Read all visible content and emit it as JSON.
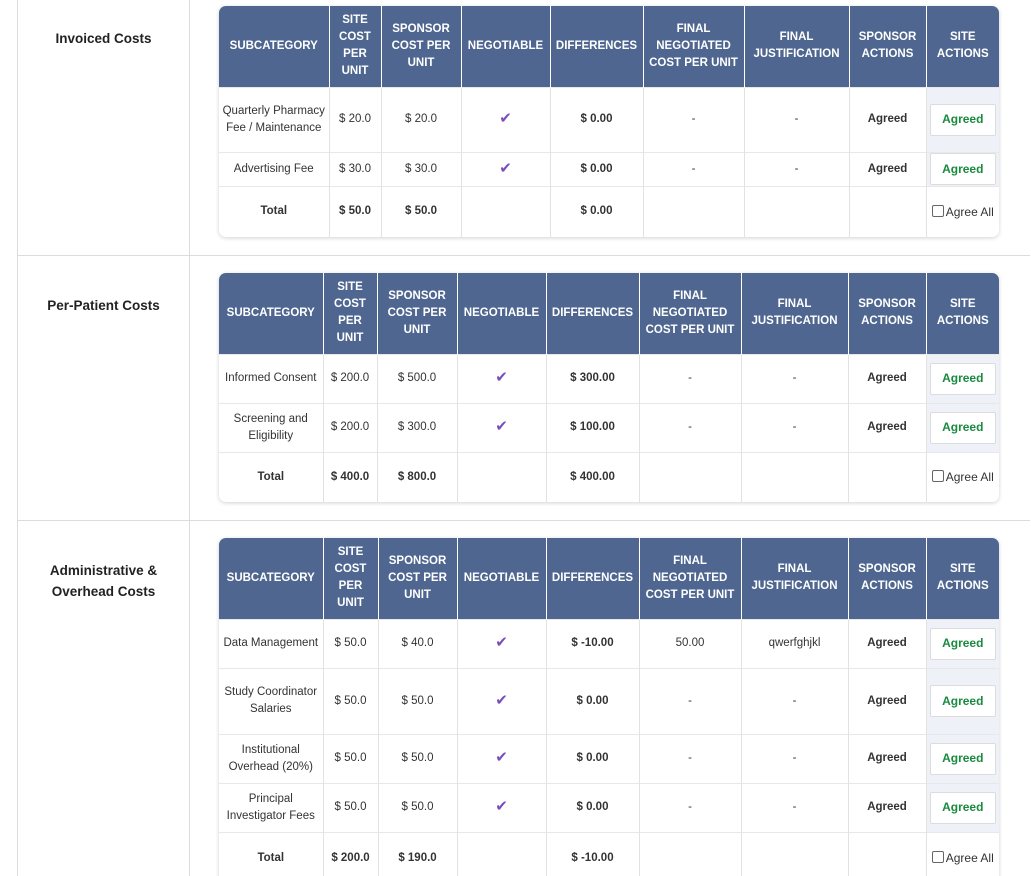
{
  "headers": [
    "Subcategory",
    "Site Cost Per Unit",
    "Sponsor Cost Per Unit",
    "Negotiable",
    "Differences",
    "Final Negotiated Cost Per Unit",
    "Final Justification",
    "Sponsor Actions",
    "Site Actions"
  ],
  "agree_all_label": "Agree All",
  "sections": [
    {
      "title": "Invoiced Costs",
      "rows": [
        {
          "subcategory": "Quarterly Pharmacy Fee / Maintenance",
          "site_cost": "$ 20.0",
          "sponsor_cost": "$ 20.0",
          "negotiable_icon": "check-icon",
          "difference": "$ 0.00",
          "final_cost": "-",
          "justification": "-",
          "sponsor_action": "Agreed",
          "site_action": "Agreed"
        },
        {
          "subcategory": "Advertising Fee",
          "site_cost": "$ 30.0",
          "sponsor_cost": "$ 30.0",
          "negotiable_icon": "check-icon",
          "difference": "$ 0.00",
          "final_cost": "-",
          "justification": "-",
          "sponsor_action": "Agreed",
          "site_action": "Agreed"
        }
      ],
      "total": {
        "label": "Total",
        "site_cost": "$ 50.0",
        "sponsor_cost": "$ 50.0",
        "difference": "$ 0.00"
      }
    },
    {
      "title": "Per-Patient Costs",
      "rows": [
        {
          "subcategory": "Informed Consent",
          "site_cost": "$ 200.0",
          "sponsor_cost": "$ 500.0",
          "negotiable_icon": "check-icon",
          "difference": "$ 300.00",
          "final_cost": "-",
          "justification": "-",
          "sponsor_action": "Agreed",
          "site_action": "Agreed"
        },
        {
          "subcategory": "Screening and Eligibility",
          "site_cost": "$ 200.0",
          "sponsor_cost": "$ 300.0",
          "negotiable_icon": "check-icon",
          "difference": "$ 100.00",
          "final_cost": "-",
          "justification": "-",
          "sponsor_action": "Agreed",
          "site_action": "Agreed"
        }
      ],
      "total": {
        "label": "Total",
        "site_cost": "$ 400.0",
        "sponsor_cost": "$ 800.0",
        "difference": "$ 400.00"
      }
    },
    {
      "title": "Administrative & Overhead Costs",
      "rows": [
        {
          "subcategory": "Data Management",
          "site_cost": "$ 50.0",
          "sponsor_cost": "$ 40.0",
          "negotiable_icon": "check-icon",
          "difference": "$ -10.00",
          "final_cost": "50.00",
          "justification": "qwerfghjkl",
          "sponsor_action": "Agreed",
          "site_action": "Agreed"
        },
        {
          "subcategory": "Study Coordinator Salaries",
          "site_cost": "$ 50.0",
          "sponsor_cost": "$ 50.0",
          "negotiable_icon": "check-icon",
          "difference": "$ 0.00",
          "final_cost": "-",
          "justification": "-",
          "sponsor_action": "Agreed",
          "site_action": "Agreed"
        },
        {
          "subcategory": "Institutional Overhead (20%)",
          "site_cost": "$ 50.0",
          "sponsor_cost": "$ 50.0",
          "negotiable_icon": "check-icon",
          "difference": "$ 0.00",
          "final_cost": "-",
          "justification": "-",
          "sponsor_action": "Agreed",
          "site_action": "Agreed"
        },
        {
          "subcategory": "Principal Investigator Fees",
          "site_cost": "$ 50.0",
          "sponsor_cost": "$ 50.0",
          "negotiable_icon": "check-icon",
          "difference": "$ 0.00",
          "final_cost": "-",
          "justification": "-",
          "sponsor_action": "Agreed",
          "site_action": "Agreed"
        }
      ],
      "total": {
        "label": "Total",
        "site_cost": "$ 200.0",
        "sponsor_cost": "$ 190.0",
        "difference": "$ -10.00"
      }
    }
  ],
  "colors": {
    "header_bg": "#4e6690",
    "positive": "#1a8a3f",
    "negative": "#dc3545",
    "check": "#7b4cc0"
  }
}
